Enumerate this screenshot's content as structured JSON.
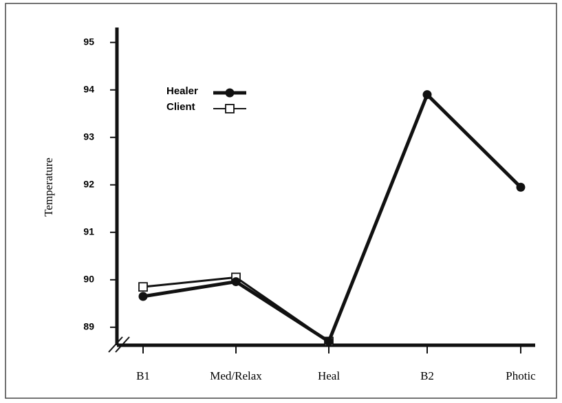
{
  "chart_data": {
    "type": "line",
    "y_label": "Temperature",
    "categories": [
      "B1",
      "Med/Relax",
      "Heal",
      "B2",
      "Photic"
    ],
    "series": [
      {
        "name": "Healer",
        "color": "#111111",
        "marker": "filled-circle",
        "values": [
          89.65,
          89.96,
          88.7,
          93.9,
          91.95
        ]
      },
      {
        "name": "Client",
        "color": "#111111",
        "marker": "open-square",
        "values": [
          89.85,
          90.05,
          88.7,
          null,
          null
        ]
      }
    ],
    "ylim": [
      88.65,
      95.3
    ],
    "yticks": [
      89,
      90,
      91,
      92,
      93,
      94,
      95
    ],
    "grid": false
  }
}
